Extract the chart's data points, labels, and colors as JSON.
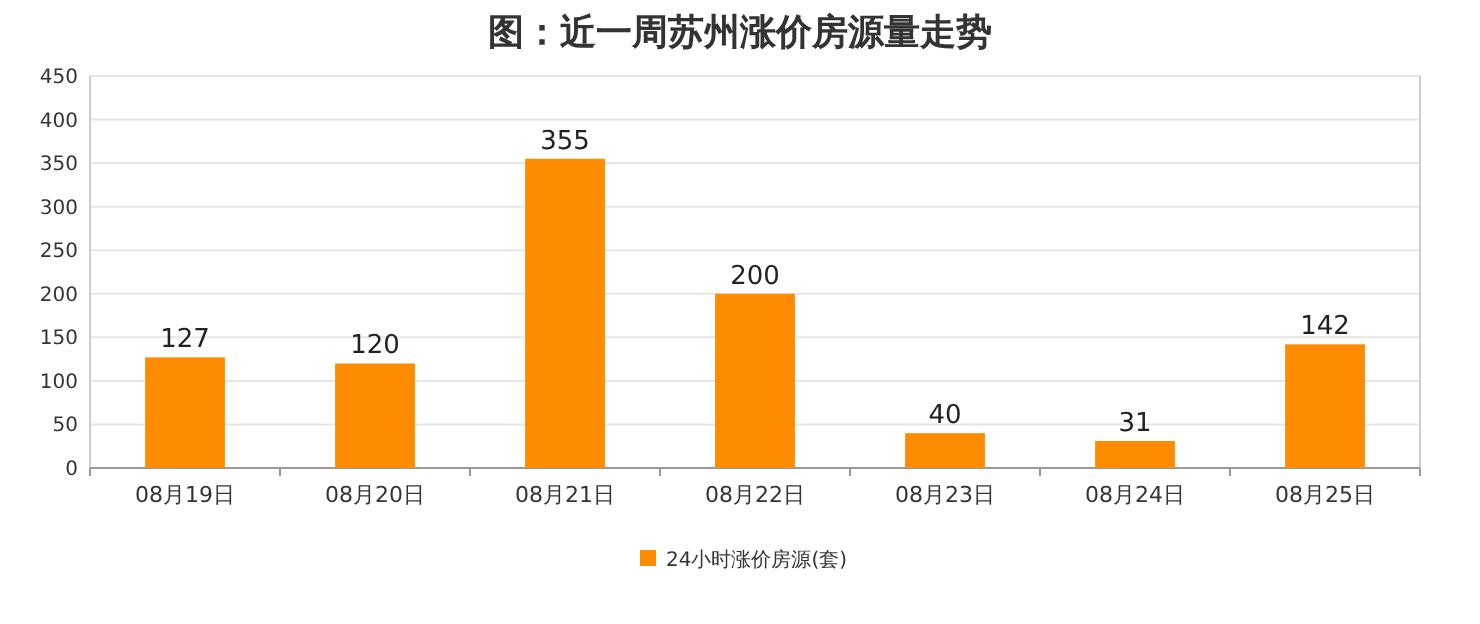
{
  "chart_data": {
    "type": "bar",
    "title": "图：近一周苏州涨价房源量走势",
    "categories": [
      "08月19日",
      "08月20日",
      "08月21日",
      "08月22日",
      "08月23日",
      "08月24日",
      "08月25日"
    ],
    "series": [
      {
        "name": "24小时涨价房源(套)",
        "color": "#ff8c00",
        "values": [
          127,
          120,
          355,
          200,
          40,
          31,
          142
        ]
      }
    ],
    "ylim": [
      0,
      450
    ],
    "yticks": [
      0,
      50,
      100,
      150,
      200,
      250,
      300,
      350,
      400,
      450
    ],
    "grid": "y",
    "legend": "bottom",
    "data_labels": true
  }
}
